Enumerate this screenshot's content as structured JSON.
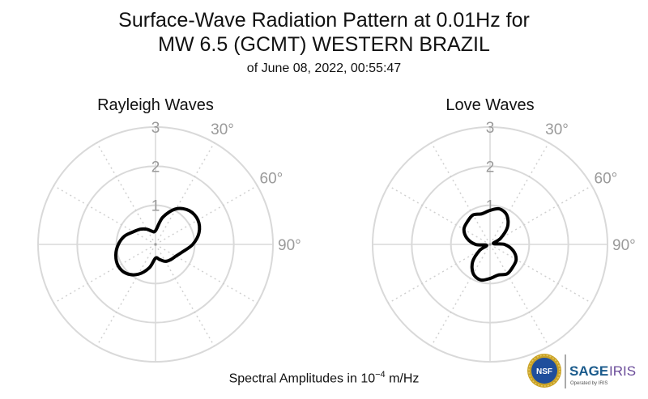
{
  "title": {
    "line1": "Surface-Wave Radiation Pattern at 0.01Hz for",
    "line2": "MW 6.5 (GCMT) WESTERN BRAZIL",
    "line3": "of June 08, 2022, 00:55:47"
  },
  "footer": {
    "text_prefix": "Spectral Amplitudes in 10",
    "exponent": "−4",
    "text_suffix": " m/Hz"
  },
  "logo": {
    "left_text": "NSF",
    "brand": "SAGE",
    "brand2": "IRIS",
    "tagline": "Operated by IRIS"
  },
  "chart_data": [
    {
      "type": "polar",
      "title": "Rayleigh Waves",
      "radial_ticks": [
        "1",
        "2",
        "3"
      ],
      "radial_range": [
        0,
        3
      ],
      "angular_ticks": [
        "30°",
        "60°",
        "90°"
      ],
      "grid": true,
      "azimuth_deg": [
        0,
        15,
        30,
        45,
        60,
        75,
        90,
        105,
        120,
        135,
        150,
        165,
        180,
        195,
        210,
        225,
        240,
        255,
        270,
        285,
        300,
        315,
        330,
        345
      ],
      "amplitude": [
        0.35,
        0.72,
        1.05,
        1.22,
        1.25,
        1.15,
        0.95,
        0.72,
        0.6,
        0.55,
        0.5,
        0.4,
        0.35,
        0.62,
        0.88,
        1.05,
        1.1,
        1.05,
        0.95,
        0.82,
        0.65,
        0.55,
        0.45,
        0.35
      ]
    },
    {
      "type": "polar",
      "title": "Love Waves",
      "radial_ticks": [
        "1",
        "2",
        "3"
      ],
      "radial_range": [
        0,
        3
      ],
      "angular_ticks": [
        "30°",
        "60°",
        "90°"
      ],
      "grid": true,
      "azimuth_deg": [
        0,
        15,
        30,
        45,
        60,
        75,
        90,
        105,
        120,
        135,
        150,
        165,
        180,
        195,
        210,
        225,
        240,
        255,
        270,
        285,
        300,
        315,
        330,
        345
      ],
      "amplitude": [
        0.87,
        0.94,
        0.86,
        0.63,
        0.31,
        0.09,
        0.37,
        0.61,
        0.77,
        0.82,
        0.87,
        0.81,
        0.87,
        0.94,
        0.86,
        0.63,
        0.31,
        0.09,
        0.37,
        0.61,
        0.77,
        0.82,
        0.87,
        0.81
      ]
    }
  ]
}
